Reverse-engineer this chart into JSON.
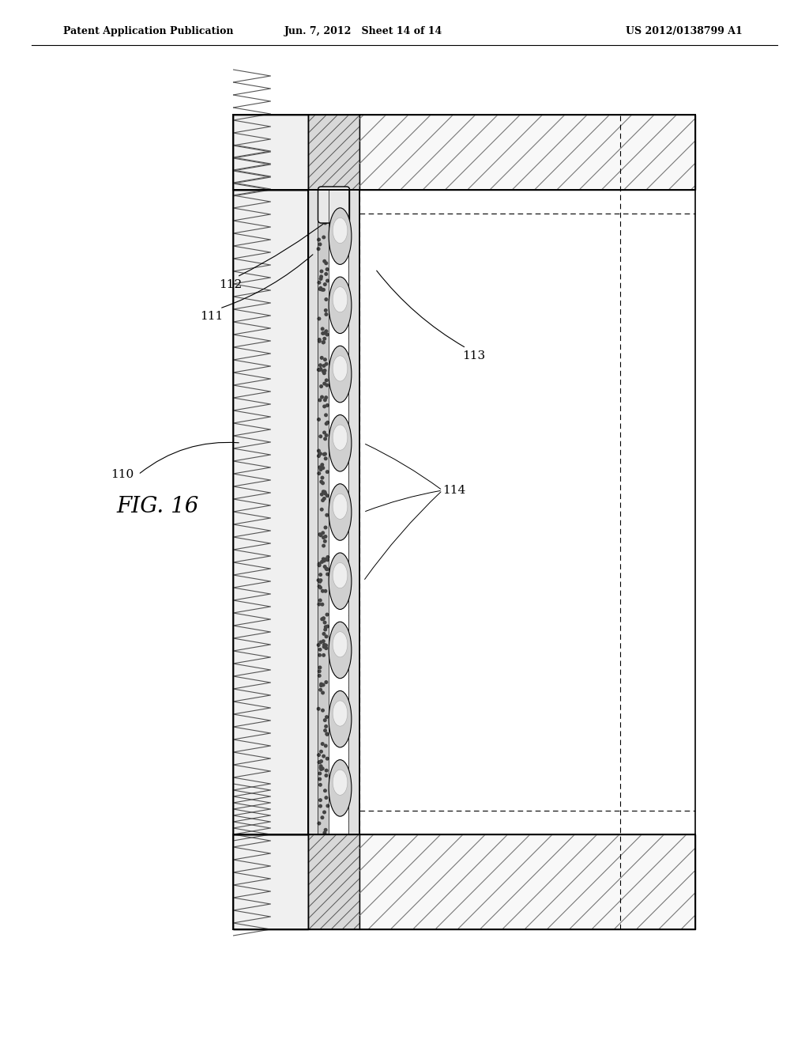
{
  "header_left": "Patent Application Publication",
  "header_center": "Jun. 7, 2012   Sheet 14 of 14",
  "header_right": "US 2012/0138799 A1",
  "fig_label": "FIG. 16",
  "bg_color": "#ffffff",
  "line_color": "#000000"
}
